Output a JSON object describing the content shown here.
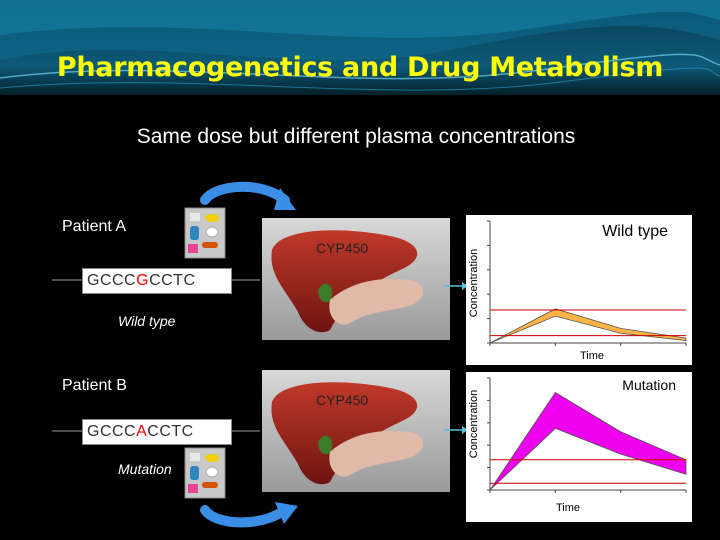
{
  "title": "Pharmacogenetics and Drug Metabolism",
  "subtitle": "Same dose but different plasma concentrations",
  "colors": {
    "title": "#ffff00",
    "mutant_allele": "#ff0000",
    "mutation_band": "#ee00ee",
    "wildtype_band": "#ffb347",
    "reference_line": "#cc0000",
    "arrow": "#3a8ee6"
  },
  "patient_a": {
    "label": "Patient A",
    "sequence_prefix": "GCCC",
    "sequence_variant": "G",
    "sequence_suffix": "CCTC",
    "genotype": "Wild type",
    "enzyme": "CYP450",
    "icons": [
      "pill-pack-icon",
      "arrow-icon",
      "liver-icon",
      "pancreas-icon"
    ]
  },
  "patient_b": {
    "label": "Patient B",
    "sequence_prefix": "GCCC",
    "sequence_variant": "A",
    "sequence_suffix": "CCTC",
    "genotype": "Mutation",
    "enzyme": "CYP450",
    "icons": [
      "pill-pack-icon",
      "arrow-icon",
      "liver-icon",
      "pancreas-icon"
    ]
  },
  "chart_data": [
    {
      "type": "area",
      "title": "Wild type",
      "xlabel": "Time",
      "ylabel": "Concentration",
      "x": [
        0,
        1,
        2,
        3
      ],
      "upper": [
        0,
        0.28,
        0.12,
        0.04
      ],
      "lower": [
        0,
        0.22,
        0.08,
        0.02
      ],
      "reference_lines": [
        0.27,
        0.06
      ],
      "ylim": [
        0,
        1
      ],
      "xlim": [
        0,
        3
      ]
    },
    {
      "type": "area",
      "title": "Mutation",
      "xlabel": "Time",
      "ylabel": "Concentration",
      "x": [
        0,
        1,
        2,
        3
      ],
      "upper": [
        0,
        0.87,
        0.52,
        0.27
      ],
      "lower": [
        0,
        0.55,
        0.32,
        0.14
      ],
      "reference_lines": [
        0.27,
        0.06
      ],
      "ylim": [
        0,
        1
      ],
      "xlim": [
        0,
        3
      ]
    }
  ]
}
